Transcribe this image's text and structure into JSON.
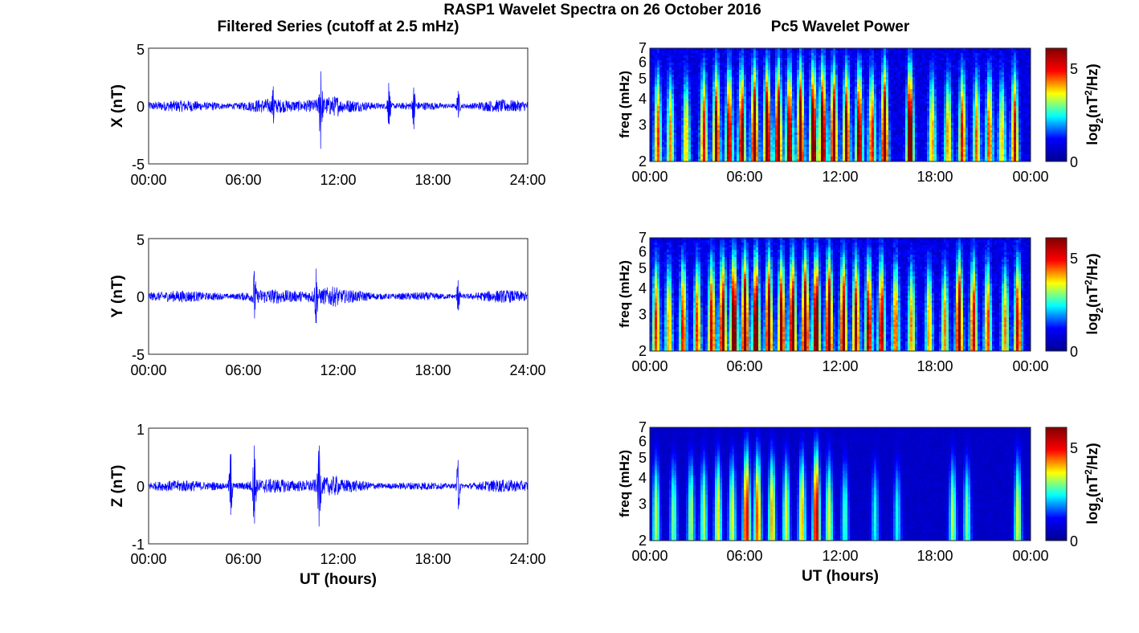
{
  "title": "RASP1 Wavelet Spectra on 26 October 2016",
  "left_title": "Filtered Series (cutoff at 2.5 mHz)",
  "right_title": "Pc5 Wavelet Power",
  "left_xticks": [
    "00:00",
    "06:00",
    "12:00",
    "18:00",
    "24:00"
  ],
  "right_xticks": [
    "00:00",
    "06:00",
    "12:00",
    "18:00",
    "00:00"
  ],
  "xlabel": "UT (hours)",
  "freq_label": "freq (mHz)",
  "freq_ticks": [
    "2",
    "3",
    "4",
    "5",
    "6",
    "7"
  ],
  "colorbar_label": "log2(nT2/Hz)",
  "colorbar_ticks": [
    "0",
    "5"
  ],
  "colormap": [
    "#00008f",
    "#0000ff",
    "#00ffff",
    "#ffff00",
    "#ff0000",
    "#800000"
  ],
  "series_color": "#0000ff",
  "chart_data": [
    {
      "type": "line",
      "component": "X",
      "ylabel": "X (nT)",
      "ylim": [
        -5,
        5
      ],
      "yticks": [
        "5",
        "0",
        "-5"
      ],
      "xlim_hours": [
        0,
        24
      ],
      "grid": false,
      "bursts": [
        {
          "hour": 10.9,
          "min": -3.7,
          "max": 3.0
        },
        {
          "hour": 7.9,
          "min": -1.5,
          "max": 1.7
        },
        {
          "hour": 15.2,
          "min": -1.5,
          "max": 2.0
        },
        {
          "hour": 16.8,
          "min": -2.0,
          "max": 1.0
        },
        {
          "hour": 19.6,
          "min": -1.0,
          "max": 1.3
        }
      ]
    },
    {
      "type": "line",
      "component": "Y",
      "ylabel": "Y (nT)",
      "ylim": [
        -5,
        5
      ],
      "yticks": [
        "5",
        "0",
        "-5"
      ],
      "xlim_hours": [
        0,
        24
      ],
      "grid": false,
      "bursts": [
        {
          "hour": 6.7,
          "min": -1.9,
          "max": 2.2
        },
        {
          "hour": 10.6,
          "min": -2.3,
          "max": 2.4
        },
        {
          "hour": 19.6,
          "min": -1.2,
          "max": 1.4
        }
      ]
    },
    {
      "type": "line",
      "component": "Z",
      "ylabel": "Z (nT)",
      "ylim": [
        -1,
        1
      ],
      "yticks": [
        "1",
        "0",
        "-1"
      ],
      "xlim_hours": [
        0,
        24
      ],
      "grid": false,
      "bursts": [
        {
          "hour": 6.7,
          "min": -0.65,
          "max": 0.7
        },
        {
          "hour": 10.8,
          "min": -0.7,
          "max": 0.7
        },
        {
          "hour": 5.2,
          "min": -0.5,
          "max": 0.55
        },
        {
          "hour": 19.6,
          "min": -0.4,
          "max": 0.45
        }
      ]
    },
    {
      "type": "heatmap",
      "component": "X",
      "ylabel": "freq (mHz)",
      "ylim_mHz": [
        2,
        7
      ],
      "y_scale": "log",
      "colorbar_range": [
        0,
        6
      ],
      "events_hours": [
        0.5,
        1.3,
        2.3,
        3.4,
        4.2,
        5.0,
        5.8,
        6.6,
        7.4,
        8.1,
        8.8,
        9.5,
        10.3,
        10.9,
        11.6,
        12.4,
        13.2,
        14.0,
        14.8,
        16.4,
        17.8,
        18.8,
        19.7,
        20.6,
        21.4,
        22.2,
        23.0
      ],
      "event_peaks": [
        0.7,
        0.6,
        0.55,
        0.75,
        0.9,
        0.85,
        0.9,
        1.0,
        1.0,
        1.0,
        0.9,
        1.0,
        1.0,
        1.0,
        0.95,
        0.9,
        0.9,
        0.75,
        1.0,
        1.0,
        0.6,
        0.6,
        0.75,
        0.65,
        0.7,
        0.55,
        0.8
      ]
    },
    {
      "type": "heatmap",
      "component": "Y",
      "ylabel": "freq (mHz)",
      "ylim_mHz": [
        2,
        7
      ],
      "y_scale": "log",
      "colorbar_range": [
        0,
        6
      ],
      "events_hours": [
        0.4,
        1.2,
        2.1,
        3.0,
        3.9,
        4.6,
        5.3,
        6.0,
        6.7,
        7.5,
        8.3,
        9.0,
        9.8,
        10.5,
        11.3,
        12.2,
        13.0,
        13.8,
        14.6,
        15.5,
        16.5,
        17.6,
        18.6,
        19.5,
        20.4,
        21.3,
        22.4,
        23.2
      ],
      "event_peaks": [
        0.7,
        0.6,
        0.75,
        0.7,
        0.8,
        0.9,
        1.0,
        1.0,
        1.0,
        0.95,
        0.9,
        0.95,
        1.0,
        1.0,
        1.0,
        0.9,
        0.85,
        0.85,
        0.85,
        0.7,
        0.6,
        0.6,
        0.6,
        0.95,
        0.8,
        0.7,
        0.6,
        0.8
      ]
    },
    {
      "type": "heatmap",
      "component": "Z",
      "ylabel": "freq (mHz)",
      "ylim_mHz": [
        2,
        7
      ],
      "y_scale": "log",
      "colorbar_range": [
        0,
        6
      ],
      "events_hours": [
        0.4,
        1.5,
        2.6,
        3.4,
        4.3,
        5.2,
        6.1,
        6.8,
        7.7,
        8.6,
        9.6,
        10.5,
        11.3,
        12.3,
        14.2,
        15.6,
        19.1,
        20.0,
        23.2
      ],
      "event_peaks": [
        0.45,
        0.4,
        0.45,
        0.45,
        0.55,
        0.5,
        0.8,
        0.7,
        0.6,
        0.5,
        0.6,
        0.85,
        0.5,
        0.35,
        0.3,
        0.3,
        0.45,
        0.4,
        0.5
      ]
    }
  ]
}
